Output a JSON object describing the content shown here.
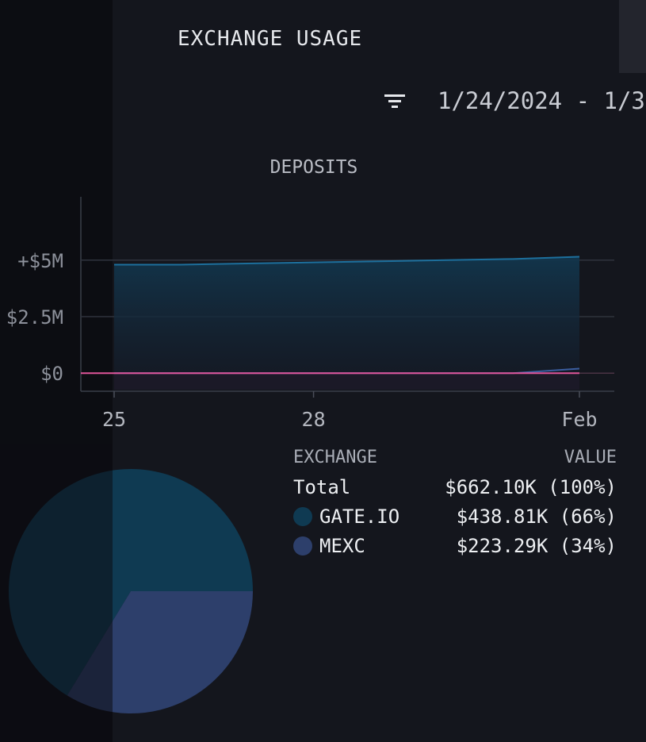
{
  "header": {
    "title": "EXCHANGE USAGE",
    "date_range": "1/24/2024 - 1/3"
  },
  "icons": {
    "filter": "filter-icon"
  },
  "colors": {
    "background": "#14161d",
    "gate_io": "#0f3a52",
    "mexc": "#2d3f6b",
    "zero_line": "#e0559a",
    "grid": "#2f333d",
    "area_line": "#1d6f9c"
  },
  "chart_data": [
    {
      "type": "area",
      "title": "DEPOSITS",
      "x_ticks": [
        "25",
        "28",
        "Feb"
      ],
      "y_ticks": [
        "+$5M",
        "$2.5M",
        "$0"
      ],
      "ylim": [
        -0.8,
        7.8
      ],
      "y_unit": "M",
      "grid": true,
      "x": [
        "2024-01-25",
        "2024-01-26",
        "2024-01-27",
        "2024-01-28",
        "2024-01-29",
        "2024-01-30",
        "2024-01-31",
        "2024-02-01"
      ],
      "series": [
        {
          "values": [
            4.8,
            4.8,
            4.85,
            4.9,
            4.95,
            5.0,
            5.05,
            5.15
          ]
        },
        {
          "values": [
            0,
            0,
            0,
            0,
            0,
            0,
            0,
            0.2
          ]
        }
      ]
    },
    {
      "type": "pie",
      "legend_header": {
        "name": "EXCHANGE",
        "value": "VALUE"
      },
      "total": {
        "label": "Total",
        "value": "$662.10K (100%)"
      },
      "slices": [
        {
          "label": "GATE.IO",
          "value": 438.81,
          "display": "$438.81K (66%)",
          "color": "#0f3a52"
        },
        {
          "label": "MEXC",
          "value": 223.29,
          "display": "$223.29K (34%)",
          "color": "#2d3f6b"
        }
      ]
    }
  ]
}
